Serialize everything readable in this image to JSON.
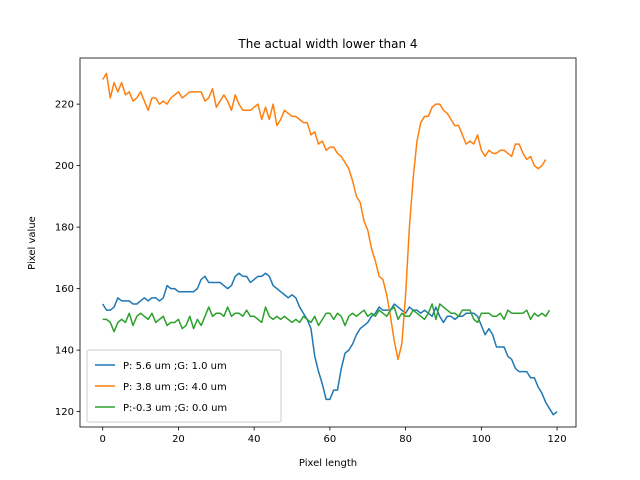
{
  "chart_data": {
    "type": "line",
    "title": "The actual width lower than 4",
    "xlabel": "Pixel length",
    "ylabel": "Pixel value",
    "xlim": [
      -6,
      125
    ],
    "ylim": [
      115,
      235
    ],
    "xticks": [
      0,
      20,
      40,
      60,
      80,
      100,
      120
    ],
    "yticks": [
      120,
      140,
      160,
      180,
      200,
      220
    ],
    "grid": false,
    "legend_position": "lower-left",
    "series": [
      {
        "name": "P: 5.6 um ;G: 1.0 um",
        "color": "#1f77b4",
        "values": [
          155,
          153,
          153,
          154,
          157,
          156,
          156,
          156,
          155,
          155,
          156,
          157,
          156,
          157,
          157,
          156,
          157,
          161,
          160,
          160,
          159,
          159,
          159,
          159,
          159,
          160,
          163,
          164,
          162,
          162,
          162,
          162,
          161,
          160,
          161,
          164,
          165,
          164,
          164,
          162,
          163,
          164,
          164,
          165,
          164,
          161,
          160,
          159,
          158,
          157,
          158,
          157,
          154,
          152,
          150,
          147,
          138,
          133,
          129,
          124,
          124,
          127,
          127,
          134,
          139,
          140,
          142,
          145,
          147,
          148,
          149,
          151,
          152,
          154,
          153,
          153,
          153,
          155,
          154,
          153,
          152,
          154,
          153,
          153,
          152,
          153,
          152,
          151,
          154,
          151,
          149,
          151,
          151,
          150,
          151,
          151,
          152,
          152,
          152,
          151,
          148,
          145,
          147,
          145,
          141,
          141,
          141,
          138,
          137,
          134,
          133,
          133,
          133,
          131,
          131,
          128,
          126,
          123,
          121,
          119,
          120
        ]
      },
      {
        "name": "P: 3.8 um ;G: 4.0 um",
        "color": "#ff7f0e",
        "values": [
          228,
          230,
          222,
          227,
          224,
          227,
          223,
          224,
          221,
          222,
          224,
          221,
          218,
          222,
          222,
          220,
          221,
          220,
          222,
          223,
          224,
          222,
          223,
          224,
          224,
          224,
          224,
          221,
          222,
          225,
          219,
          221,
          223,
          221,
          218,
          223,
          220,
          218,
          218,
          218,
          219,
          220,
          215,
          219,
          215,
          220,
          213,
          215,
          218,
          217,
          216,
          216,
          215,
          214,
          214,
          210,
          211,
          207,
          208,
          205,
          206,
          206,
          204,
          203,
          201,
          199,
          195,
          190,
          188,
          182,
          179,
          173,
          169,
          164,
          163,
          158,
          151,
          143,
          137,
          142,
          158,
          180,
          196,
          208,
          214,
          216,
          216,
          219,
          220,
          220,
          218,
          217,
          215,
          213,
          213,
          210,
          207,
          208,
          207,
          210,
          205,
          203,
          205,
          204,
          204,
          205,
          205,
          204,
          203,
          207,
          207,
          204,
          202,
          203,
          200,
          199,
          200,
          202
        ],
        "x_start": 0
      },
      {
        "name": "P:-0.3 um ;G: 0.0 um",
        "color": "#2ca02c",
        "values": [
          150,
          150,
          149,
          146,
          149,
          150,
          149,
          152,
          148,
          151,
          152,
          151,
          150,
          152,
          149,
          150,
          151,
          148,
          149,
          149,
          150,
          147,
          148,
          151,
          147,
          150,
          148,
          151,
          154,
          151,
          152,
          152,
          151,
          154,
          151,
          152,
          152,
          151,
          153,
          151,
          151,
          150,
          149,
          154,
          151,
          150,
          151,
          150,
          151,
          150,
          149,
          150,
          149,
          151,
          150,
          149,
          151,
          148,
          150,
          152,
          152,
          150,
          152,
          151,
          148,
          151,
          152,
          151,
          152,
          153,
          151,
          152,
          151,
          153,
          152,
          151,
          153,
          154,
          150,
          152,
          151,
          151,
          153,
          152,
          151,
          150,
          152,
          155,
          150,
          155,
          154,
          153,
          152,
          152,
          151,
          153,
          153,
          153,
          150,
          149,
          152,
          152,
          152,
          151,
          151,
          152,
          150,
          153,
          152,
          152,
          152,
          152,
          153,
          150,
          152,
          151,
          152,
          151,
          153
        ]
      }
    ]
  }
}
